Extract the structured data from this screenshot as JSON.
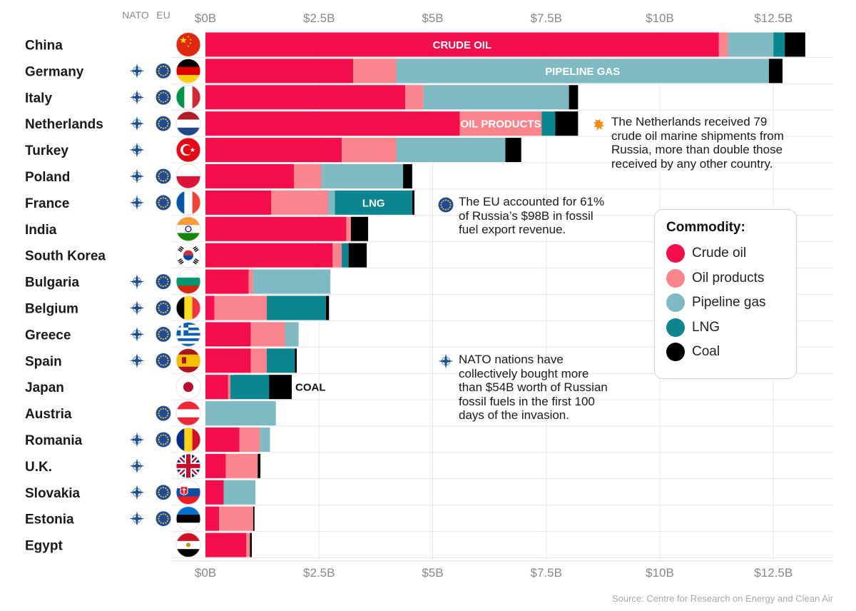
{
  "header": {
    "nato_label": "NATO",
    "eu_label": "EU"
  },
  "chart_data": {
    "type": "bar",
    "orientation": "horizontal",
    "stacked": true,
    "xlim": [
      0,
      13.5
    ],
    "x_ticks": [
      "$0B",
      "$2.5B",
      "$5B",
      "$7.5B",
      "$10B",
      "$12.5B"
    ],
    "x_tick_values": [
      0,
      2.5,
      5,
      7.5,
      10,
      12.5
    ],
    "grid": true,
    "legend_position": "right",
    "legend_title": "Commodity:",
    "series": [
      {
        "name": "Crude oil",
        "color": "#f20f4b"
      },
      {
        "name": "Oil products",
        "color": "#fb858c"
      },
      {
        "name": "Pipeline gas",
        "color": "#7fbac2"
      },
      {
        "name": "LNG",
        "color": "#0b8590"
      },
      {
        "name": "Coal",
        "color": "#000000"
      }
    ],
    "categories": [
      {
        "name": "China",
        "flag": "china-flag",
        "nato": false,
        "eu": false,
        "values": [
          11.3,
          0.2,
          1.0,
          0.25,
          0.45
        ]
      },
      {
        "name": "Germany",
        "flag": "germany-flag",
        "nato": true,
        "eu": true,
        "values": [
          3.25,
          0.95,
          8.2,
          0,
          0.3
        ]
      },
      {
        "name": "Italy",
        "flag": "italy-flag",
        "nato": true,
        "eu": true,
        "values": [
          4.4,
          0.4,
          3.2,
          0,
          0.2
        ]
      },
      {
        "name": "Netherlands",
        "flag": "netherlands-flag",
        "nato": true,
        "eu": true,
        "values": [
          5.6,
          1.8,
          0,
          0.3,
          0.5
        ]
      },
      {
        "name": "Turkey",
        "flag": "turkey-flag",
        "nato": true,
        "eu": false,
        "values": [
          3.0,
          1.2,
          2.4,
          0,
          0.35
        ]
      },
      {
        "name": "Poland",
        "flag": "poland-flag",
        "nato": true,
        "eu": true,
        "values": [
          1.95,
          0.6,
          1.8,
          0,
          0.2
        ]
      },
      {
        "name": "France",
        "flag": "france-flag",
        "nato": true,
        "eu": true,
        "values": [
          1.45,
          1.25,
          0.15,
          1.7,
          0.05
        ]
      },
      {
        "name": "India",
        "flag": "india-flag",
        "nato": false,
        "eu": false,
        "values": [
          3.1,
          0.1,
          0,
          0,
          0.38
        ]
      },
      {
        "name": "South Korea",
        "flag": "south-korea-flag",
        "nato": false,
        "eu": false,
        "values": [
          2.8,
          0.2,
          0,
          0.15,
          0.4
        ]
      },
      {
        "name": "Bulgaria",
        "flag": "bulgaria-flag",
        "nato": true,
        "eu": true,
        "values": [
          0.95,
          0.1,
          1.7,
          0,
          0
        ]
      },
      {
        "name": "Belgium",
        "flag": "belgium-flag",
        "nato": true,
        "eu": true,
        "values": [
          0.2,
          1.15,
          0,
          1.3,
          0.07
        ]
      },
      {
        "name": "Greece",
        "flag": "greece-flag",
        "nato": true,
        "eu": true,
        "values": [
          1.0,
          0.75,
          0.3,
          0,
          0
        ]
      },
      {
        "name": "Spain",
        "flag": "spain-flag",
        "nato": true,
        "eu": true,
        "values": [
          1.0,
          0.35,
          0,
          0.62,
          0.04
        ]
      },
      {
        "name": "Japan",
        "flag": "japan-flag",
        "nato": false,
        "eu": false,
        "values": [
          0.5,
          0.05,
          0,
          0.85,
          0.5
        ]
      },
      {
        "name": "Austria",
        "flag": "austria-flag",
        "nato": false,
        "eu": true,
        "values": [
          0,
          0,
          1.55,
          0,
          0
        ]
      },
      {
        "name": "Romania",
        "flag": "romania-flag",
        "nato": true,
        "eu": true,
        "values": [
          0.75,
          0.45,
          0.22,
          0,
          0
        ]
      },
      {
        "name": "U.K.",
        "flag": "uk-flag",
        "nato": true,
        "eu": false,
        "values": [
          0.45,
          0.7,
          0,
          0,
          0.06
        ]
      },
      {
        "name": "Slovakia",
        "flag": "slovakia-flag",
        "nato": true,
        "eu": true,
        "values": [
          0.4,
          0,
          0.7,
          0,
          0
        ]
      },
      {
        "name": "Estonia",
        "flag": "estonia-flag",
        "nato": true,
        "eu": true,
        "values": [
          0.3,
          0.75,
          0,
          0,
          0.03
        ]
      },
      {
        "name": "Egypt",
        "flag": "egypt-flag",
        "nato": false,
        "eu": false,
        "values": [
          0.9,
          0.08,
          0,
          0,
          0.04
        ]
      }
    ],
    "bar_labels": [
      {
        "text": "CRUDE OIL",
        "country": "China",
        "series": "Crude oil"
      },
      {
        "text": "PIPELINE GAS",
        "country": "Germany",
        "series": "Pipeline gas"
      },
      {
        "text": "OIL PRODUCTS",
        "country": "Netherlands",
        "series": "Oil products"
      },
      {
        "text": "LNG",
        "country": "France",
        "series": "LNG"
      },
      {
        "text": "COAL",
        "country": "Japan",
        "series": "Coal",
        "outside": true
      }
    ],
    "annotations": [
      {
        "icon": "netherlands-lion-icon",
        "text": "The Netherlands received 79 crude oil marine shipments from Russia, more than double those received by any other country."
      },
      {
        "icon": "eu-stars-icon",
        "text": "The EU accounted for 61% of Russia’s $98B in fossil fuel export revenue."
      },
      {
        "icon": "nato-compass-icon",
        "text": "NATO nations have collectively bought more than $54B worth of Russian fossil fuels in the first 100 days of the invasion."
      }
    ]
  },
  "annotation_lines": {
    "netherlands": [
      "The Netherlands received 79",
      "crude oil marine shipments from",
      "Russia, more than double those",
      "received by any other country."
    ],
    "eu": [
      "The EU accounted for 61%",
      "of Russia’s $98B in fossil",
      "fuel export revenue."
    ],
    "nato": [
      "NATO nations have",
      "collectively bought more",
      "than $54B worth of Russian",
      "fossil fuels in the first 100",
      "days of the invasion."
    ]
  },
  "source": "Source: Centre for Research on Energy and Clean Air"
}
